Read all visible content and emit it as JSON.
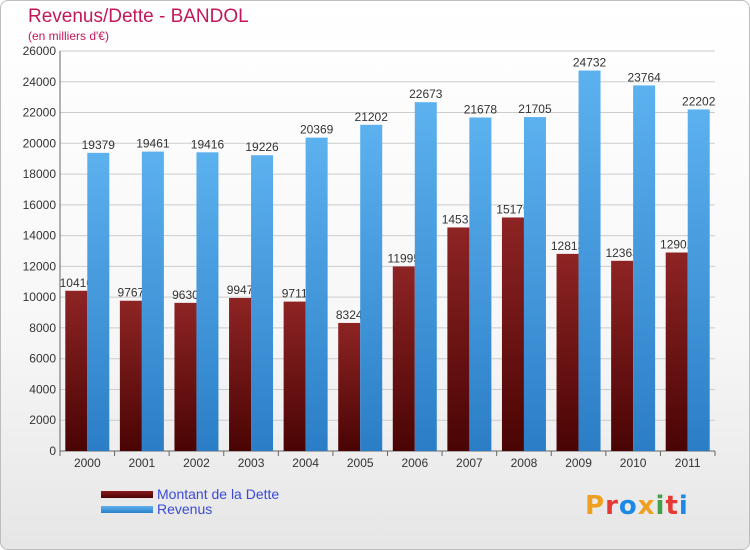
{
  "chart_data": {
    "type": "bar",
    "title": "Revenus/Dette - BANDOL",
    "subtitle": "(en milliers d'€)",
    "categories": [
      "2000",
      "2001",
      "2002",
      "2003",
      "2004",
      "2005",
      "2006",
      "2007",
      "2008",
      "2009",
      "2010",
      "2011"
    ],
    "series": [
      {
        "name": "Montant de la Dette",
        "values": [
          10416,
          9767,
          9630,
          9947,
          9711,
          8324,
          11995,
          14531,
          15179,
          12813,
          12363,
          12902
        ],
        "labels": [
          "10416",
          "9767",
          "9630",
          "9947",
          "9711",
          "8324",
          "11995",
          "14531",
          "15179",
          "12813",
          "12363",
          "12902"
        ],
        "color": "#7a1616"
      },
      {
        "name": "Revenus",
        "values": [
          19379,
          19461,
          19416,
          19226,
          20369,
          21202,
          22673,
          21678,
          21705,
          24732,
          23764,
          22202
        ],
        "labels": [
          "19379",
          "19461",
          "19416",
          "19226",
          "20369",
          "21202",
          "22673",
          "21678",
          "21705",
          "24732",
          "23764",
          "22202"
        ],
        "color": "#3f9be3"
      }
    ],
    "ylim": [
      0,
      26000
    ],
    "yticks": [
      0,
      2000,
      4000,
      6000,
      8000,
      10000,
      12000,
      14000,
      16000,
      18000,
      20000,
      22000,
      24000,
      26000
    ],
    "grid": true,
    "legend_position": "bottom-left"
  },
  "logo": {
    "text": "Proxiti",
    "colors": [
      "#f0a020",
      "#e53935",
      "#1e88e5",
      "#f0a020",
      "#43a047",
      "#e53935",
      "#1e88e5"
    ]
  }
}
